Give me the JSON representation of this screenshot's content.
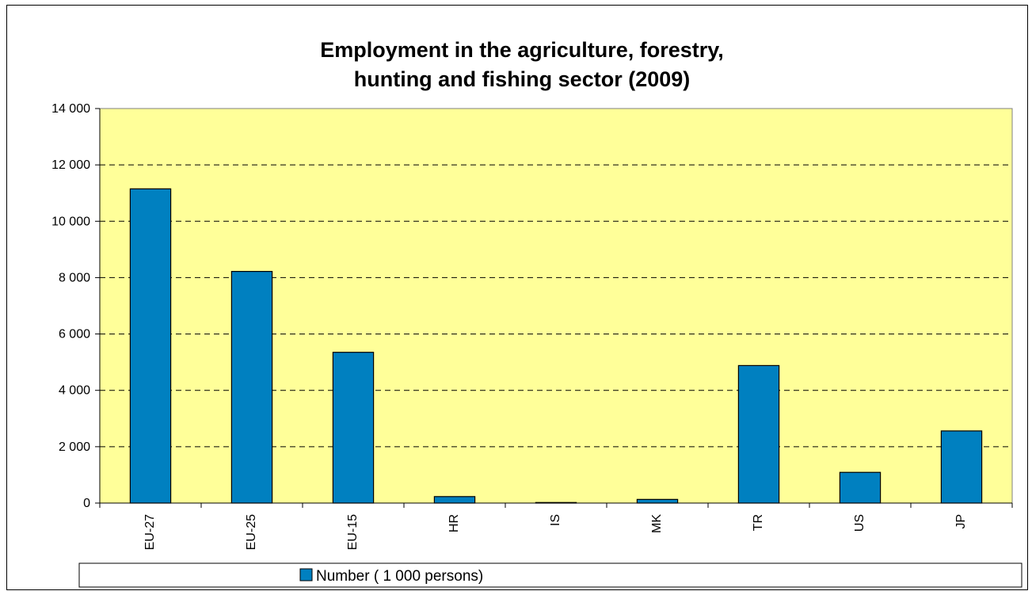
{
  "chart_data": {
    "type": "bar",
    "title": [
      "Employment in the agriculture, forestry,",
      "hunting and fishing sector (2009)"
    ],
    "categories": [
      "EU-27",
      "EU-25",
      "EU-15",
      "HR",
      "IS",
      "MK",
      "TR",
      "US",
      "JP"
    ],
    "series": [
      {
        "name": "Number ( 1 000 persons)",
        "color": "#0080C0",
        "values": [
          11150,
          8220,
          5350,
          230,
          20,
          130,
          4880,
          1090,
          2560
        ]
      }
    ],
    "yticks": [
      "0",
      "2 000",
      "4 000",
      "6 000",
      "8 000",
      "10 000",
      "12 000",
      "14 000"
    ],
    "ylim": [
      0,
      14000
    ],
    "grid": "dashed-horizontal",
    "plot_background": "#FFFF99",
    "legend_position": "bottom"
  }
}
